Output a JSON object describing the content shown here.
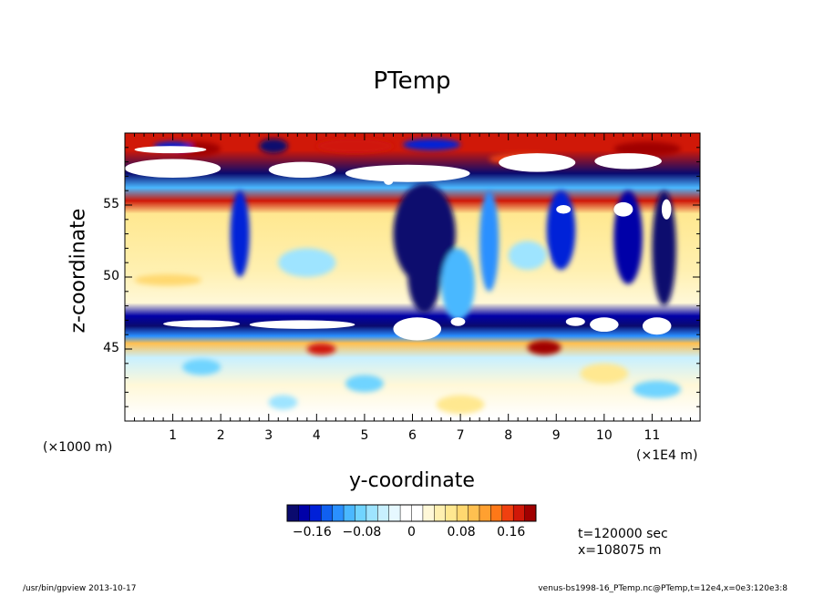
{
  "chart_data": {
    "type": "heatmap",
    "title": "PTemp",
    "xlabel": "y-coordinate",
    "ylabel": "z-coordinate",
    "x_unit_note": "(×1000 m)",
    "x_unit_note_right": "(×1E4 m)",
    "x_ticks": [
      "1",
      "2",
      "3",
      "4",
      "5",
      "6",
      "7",
      "8",
      "9",
      "10",
      "11"
    ],
    "y_ticks": [
      "45",
      "50",
      "55"
    ],
    "xlim": [
      0,
      12
    ],
    "ylim": [
      40,
      60
    ],
    "colorbar": {
      "ticks": [
        "−0.16",
        "−0.08",
        "0",
        "0.08",
        "0.16"
      ],
      "range": [
        -0.2,
        0.2
      ],
      "colors": [
        "#0a0a6e",
        "#0000a8",
        "#0020d8",
        "#1060f0",
        "#2a90ff",
        "#4ab8ff",
        "#70d4ff",
        "#9ee4ff",
        "#c8f0ff",
        "#e6f8ff",
        "#ffffff",
        "#ffffff",
        "#fff8d8",
        "#fff0b0",
        "#ffe890",
        "#ffd870",
        "#ffc050",
        "#ffa030",
        "#ff7818",
        "#f04010",
        "#d01808",
        "#a00000"
      ]
    },
    "bands": [
      {
        "z": 58.8,
        "value": 0.18
      },
      {
        "z": 57.2,
        "value": -0.25
      },
      {
        "z": 56.2,
        "value": -0.1
      },
      {
        "z": 55.3,
        "value": 0.17
      },
      {
        "z": 54.4,
        "value": 0.06
      },
      {
        "z": 50.5,
        "value": 0.04
      },
      {
        "z": 48.2,
        "value": 0.02
      },
      {
        "z": 47.3,
        "value": -0.18
      },
      {
        "z": 46.6,
        "value": -0.3
      },
      {
        "z": 45.9,
        "value": -0.12
      },
      {
        "z": 45.4,
        "value": 0.1
      },
      {
        "z": 44.4,
        "value": -0.04
      },
      {
        "z": 42.5,
        "value": 0.03
      },
      {
        "z": 40.3,
        "value": 0.01
      }
    ]
  },
  "info": {
    "time": "t=120000 sec",
    "position": "x=108075 m"
  },
  "footer": {
    "left": "/usr/bin/gpview  2013-10-17",
    "right": "venus-bs1998-16_PTemp.nc@PTemp,t=12e4,x=0e3:120e3:8"
  }
}
